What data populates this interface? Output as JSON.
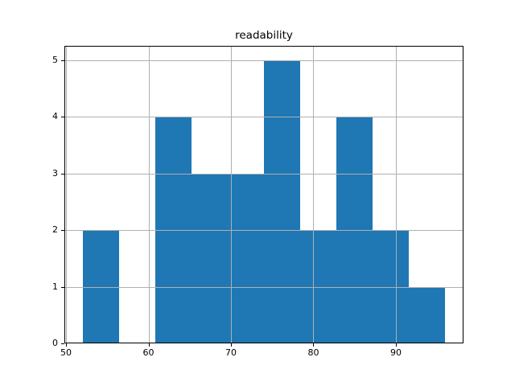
{
  "title": "readability",
  "colors": {
    "bar": "#1f77b4",
    "grid": "#b0b0b0",
    "spine": "#000000",
    "background": "#ffffff",
    "text": "#000000"
  },
  "chart_data": {
    "type": "bar",
    "subtype": "histogram",
    "title": "readability",
    "xlabel": "",
    "ylabel": "",
    "bin_edges": [
      52.0,
      56.4,
      60.8,
      65.2,
      69.6,
      74.0,
      78.4,
      82.8,
      87.2,
      91.6,
      96.0
    ],
    "counts": [
      2,
      0,
      4,
      3,
      3,
      5,
      2,
      4,
      2,
      1
    ],
    "x_ticks": [
      50,
      60,
      70,
      80,
      90
    ],
    "y_ticks": [
      0,
      1,
      2,
      3,
      4,
      5
    ],
    "xlim": [
      49.8,
      98.2
    ],
    "ylim": [
      0,
      5.25
    ],
    "grid": true,
    "grid_color": "#b0b0b0",
    "bar_color": "#1f77b4",
    "legend": null
  }
}
